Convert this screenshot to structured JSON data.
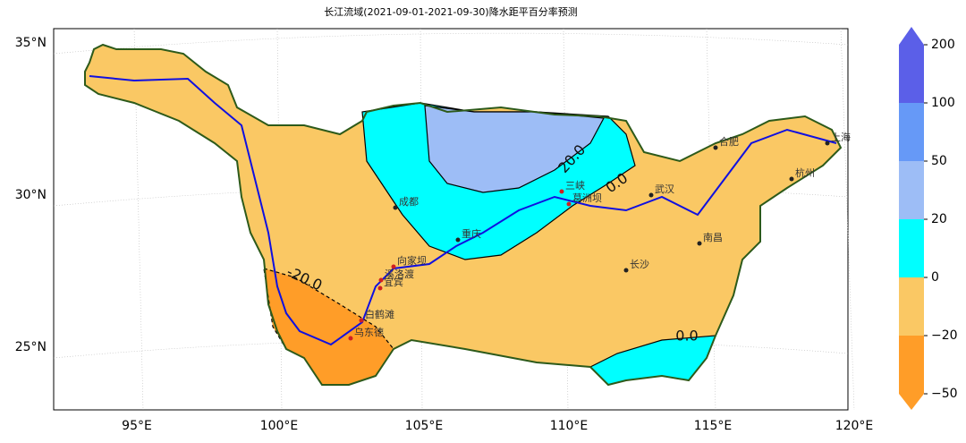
{
  "title": "长江流域(2021-09-01-2021-09-30)降水距平百分率预测",
  "lon_ticks": [
    "95°E",
    "100°E",
    "105°E",
    "110°E",
    "115°E",
    "120°E"
  ],
  "lat_ticks": [
    "35°N",
    "30°N",
    "25°N"
  ],
  "colorbar": {
    "ticks": [
      200,
      100,
      50,
      20,
      0,
      {
        "value": -20,
        "label": "−20"
      },
      {
        "value": -50,
        "label": "−50"
      }
    ],
    "colors": [
      "#5b5fe8",
      "#6699f7",
      "#9dbdf6",
      "#00ffff",
      "#fac864",
      "#ff9d28"
    ]
  },
  "contour_labels": [
    "20.0",
    "0.0",
    "-20.0",
    "0.0"
  ],
  "cities": [
    "成都",
    "重庆",
    "宜宾",
    "向家坝",
    "溪洛渡",
    "白鹤滩",
    "乌东德",
    "三峡",
    "葛洲坝",
    "武汉",
    "长沙",
    "南昌",
    "合肥",
    "杭州",
    "上海"
  ]
}
